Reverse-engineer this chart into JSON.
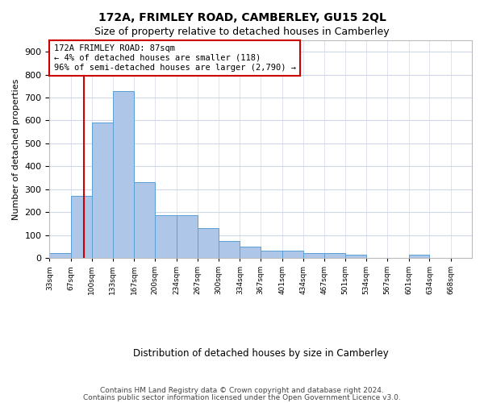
{
  "title": "172A, FRIMLEY ROAD, CAMBERLEY, GU15 2QL",
  "subtitle": "Size of property relative to detached houses in Camberley",
  "xlabel": "Distribution of detached houses by size in Camberley",
  "ylabel": "Number of detached properties",
  "footer_line1": "Contains HM Land Registry data © Crown copyright and database right 2024.",
  "footer_line2": "Contains public sector information licensed under the Open Government Licence v3.0.",
  "bar_edges": [
    33,
    67,
    100,
    133,
    167,
    200,
    234,
    267,
    300,
    334,
    367,
    401,
    434,
    467,
    501,
    534,
    567,
    601,
    634,
    668,
    701
  ],
  "bar_heights": [
    20,
    270,
    590,
    730,
    330,
    185,
    185,
    130,
    75,
    50,
    30,
    30,
    20,
    20,
    15,
    0,
    0,
    15,
    0,
    0
  ],
  "bar_color": "#aec6e8",
  "bar_edge_color": "#5a9fd4",
  "property_size": 87,
  "annotation_title": "172A FRIMLEY ROAD: 87sqm",
  "annotation_line1": "← 4% of detached houses are smaller (118)",
  "annotation_line2": "96% of semi-detached houses are larger (2,790) →",
  "vline_color": "#cc0000",
  "annotation_border_color": "#cc0000",
  "ylim": [
    0,
    950
  ],
  "yticks": [
    0,
    100,
    200,
    300,
    400,
    500,
    600,
    700,
    800,
    900
  ],
  "background_color": "#ffffff",
  "grid_color": "#d0d8e8"
}
